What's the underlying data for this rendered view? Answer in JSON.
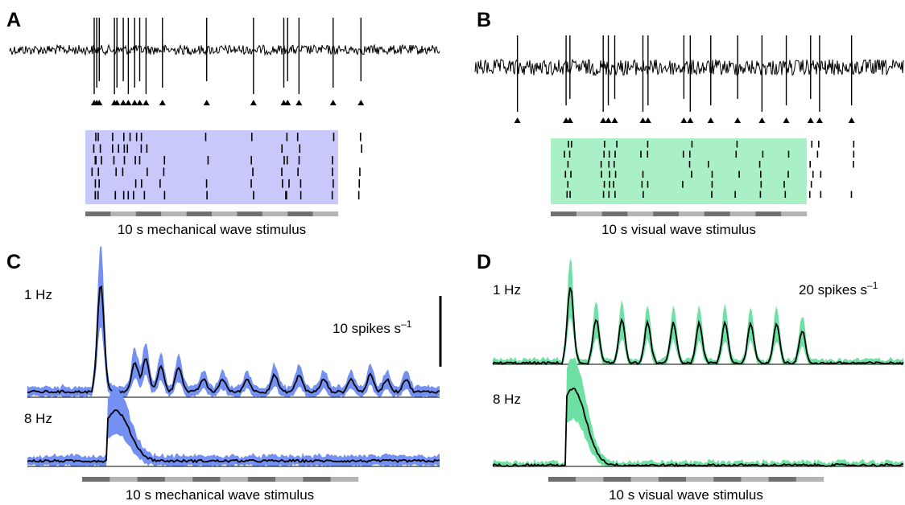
{
  "panels": {
    "A": {
      "label": "A",
      "caption": "10 s mechanical wave stimulus"
    },
    "B": {
      "label": "B",
      "caption": "10 s visual wave stimulus"
    },
    "C": {
      "label": "C",
      "caption": "10 s mechanical wave stimulus",
      "row1": "1 Hz",
      "row2": "8 Hz",
      "scale_prefix": "10 spikes s",
      "scale_sup": "–1"
    },
    "D": {
      "label": "D",
      "caption": "10 s visual wave stimulus",
      "row1": "1 Hz",
      "row2": "8 Hz",
      "scale_prefix": "20 spikes s",
      "scale_sup": "–1"
    }
  },
  "colors": {
    "mech_shade": "#c8c8fb",
    "vis_shade": "#aaf0c6",
    "mech_band": "#7390f2",
    "vis_band": "#6fe0a3",
    "bar_dark": "#707070",
    "bar_light": "#b4b4b4",
    "ink": "#000000"
  },
  "icons": {
    "spike_marker": "filled-triangle-icon"
  },
  "chart_data": [
    {
      "type": "raster",
      "panel": "A",
      "description_source": "spike raster, mechanical",
      "rows": 6,
      "stimulus_s": 10,
      "spike_marker_times_s": [
        0.35,
        0.45,
        0.55,
        1.15,
        1.25,
        1.5,
        1.7,
        1.95,
        2.15,
        2.4,
        3.05,
        4.8,
        6.65,
        7.85,
        8.0,
        8.45,
        9.8,
        10.9
      ]
    },
    {
      "type": "raster",
      "panel": "B",
      "rows": 6,
      "stimulus_s": 10,
      "spike_marker_times_s": [
        -1.3,
        0.6,
        0.75,
        2.05,
        2.25,
        2.5,
        3.6,
        3.8,
        5.2,
        5.45,
        6.25,
        7.3,
        8.25,
        9.2,
        10.15,
        10.5,
        11.75
      ]
    },
    {
      "type": "area",
      "panel": "C",
      "stimulus_s": 10,
      "unit": "spikes s–1",
      "scale_bar": 10,
      "series": [
        {
          "name": "1 Hz",
          "peaks_t_s": [
            0.15,
            1.4,
            1.8,
            2.35,
            3.0,
            3.9,
            4.6,
            5.5,
            6.5,
            7.4,
            8.3,
            9.3,
            10.0,
            10.6,
            11.3
          ],
          "peaks_rate": [
            26,
            7,
            8,
            6,
            6,
            3,
            3,
            3,
            4,
            4,
            3,
            3,
            4,
            3,
            3
          ],
          "baseline": 1
        },
        {
          "name": "8 Hz",
          "peaks_t_s": [
            0.7
          ],
          "peaks_rate": [
            12
          ],
          "baseline": 1
        }
      ]
    },
    {
      "type": "area",
      "panel": "D",
      "stimulus_s": 10,
      "unit": "spikes s–1",
      "scale_bar": 20,
      "series": [
        {
          "name": "1 Hz",
          "peaks_t_s": [
            0.2,
            1.2,
            2.2,
            3.2,
            4.2,
            5.2,
            6.2,
            7.2,
            8.2,
            9.2
          ],
          "peaks_rate": [
            19,
            11,
            11,
            10,
            10,
            10,
            10,
            10,
            10,
            8
          ],
          "baseline": 0
        },
        {
          "name": "8 Hz",
          "peaks_t_s": [
            0.3
          ],
          "peaks_rate": [
            19
          ],
          "baseline": 0
        }
      ]
    }
  ]
}
